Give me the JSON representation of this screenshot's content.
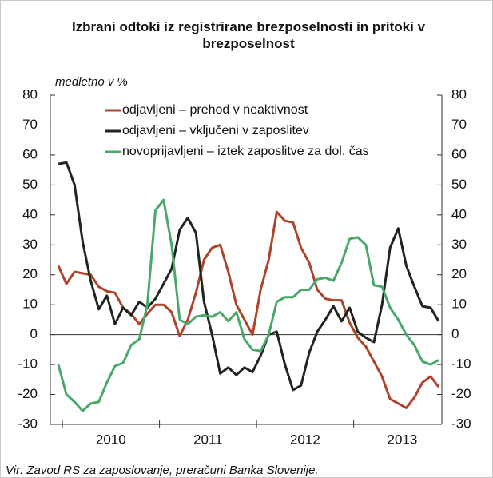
{
  "chart_data": {
    "type": "line",
    "title": "Izbrani odtoki iz registrirane brezposelnosti in pritoki v brezposelnost",
    "subtitle": "medletno v %",
    "source": "Vir: Zavod RS za zaposlovanje, preračuni Banka Slovenije.",
    "categories": [
      null,
      null,
      null,
      null,
      null,
      null,
      null,
      "2010",
      null,
      null,
      null,
      null,
      null,
      null,
      null,
      null,
      null,
      null,
      null,
      "2011",
      null,
      null,
      null,
      null,
      null,
      null,
      null,
      null,
      null,
      null,
      null,
      "2012",
      null,
      null,
      null,
      null,
      null,
      null,
      null,
      null,
      null,
      null,
      null,
      "2013",
      null,
      null,
      null,
      null
    ],
    "series": [
      {
        "name": "odjavljeni – prehod v neaktivnost",
        "color": "#b0442b",
        "values": [
          23,
          17,
          21,
          20.5,
          20,
          16,
          14.5,
          14,
          9,
          7,
          3.5,
          7,
          10,
          10,
          7.5,
          -0.5,
          5,
          14,
          25,
          29,
          30,
          21,
          10,
          5,
          0,
          15,
          25,
          41,
          38,
          37.5,
          29,
          24,
          15,
          12,
          11.5,
          11.5,
          4,
          -1,
          -4,
          -9,
          -14,
          -21.5,
          -23,
          -24.5,
          -21,
          -16,
          -14,
          -17.5
        ]
      },
      {
        "name": "odjavljeni – vključeni v zaposlitev",
        "color": "#1e261e",
        "values": [
          57,
          57.5,
          50,
          31,
          18,
          8.5,
          13,
          3.5,
          9,
          6.5,
          11,
          9,
          12,
          17,
          22,
          35,
          39,
          34,
          11,
          0,
          -13,
          -11,
          -13.5,
          -11,
          -12.5,
          -7,
          0,
          1,
          -10,
          -18.5,
          -17,
          -6,
          1,
          5,
          9.5,
          4.5,
          9,
          1,
          -1,
          -2.5,
          10,
          29,
          35.5,
          23,
          16,
          9.5,
          9,
          4.5
        ]
      },
      {
        "name": "novoprijavljeni – iztek zaposlitve za dol. čas",
        "color": "#4aa86a",
        "values": [
          -10,
          -20,
          -22.5,
          -25.5,
          -23,
          -22.5,
          -16,
          -10.5,
          -9.5,
          -3.5,
          -1.5,
          10,
          41.5,
          45,
          30,
          5,
          3.5,
          6,
          6.5,
          6,
          7.5,
          4.5,
          7.5,
          -1.5,
          -5,
          -5.5,
          0,
          11,
          12.5,
          12.5,
          15,
          15,
          18.5,
          19,
          18,
          24,
          32,
          32.5,
          30,
          16.5,
          16,
          9,
          5,
          0,
          -3.5,
          -9,
          -10,
          -8.5
        ]
      }
    ],
    "ylim": [
      -30,
      80
    ],
    "yticks": [
      -30,
      -20,
      -10,
      0,
      10,
      20,
      30,
      40,
      50,
      60,
      70,
      80
    ],
    "y2lim": [
      -30,
      80
    ],
    "y2ticks": [
      -30,
      -20,
      -10,
      0,
      10,
      20,
      30,
      40,
      50,
      60,
      70,
      80
    ],
    "zero_line": true,
    "legend": "upper-left"
  }
}
